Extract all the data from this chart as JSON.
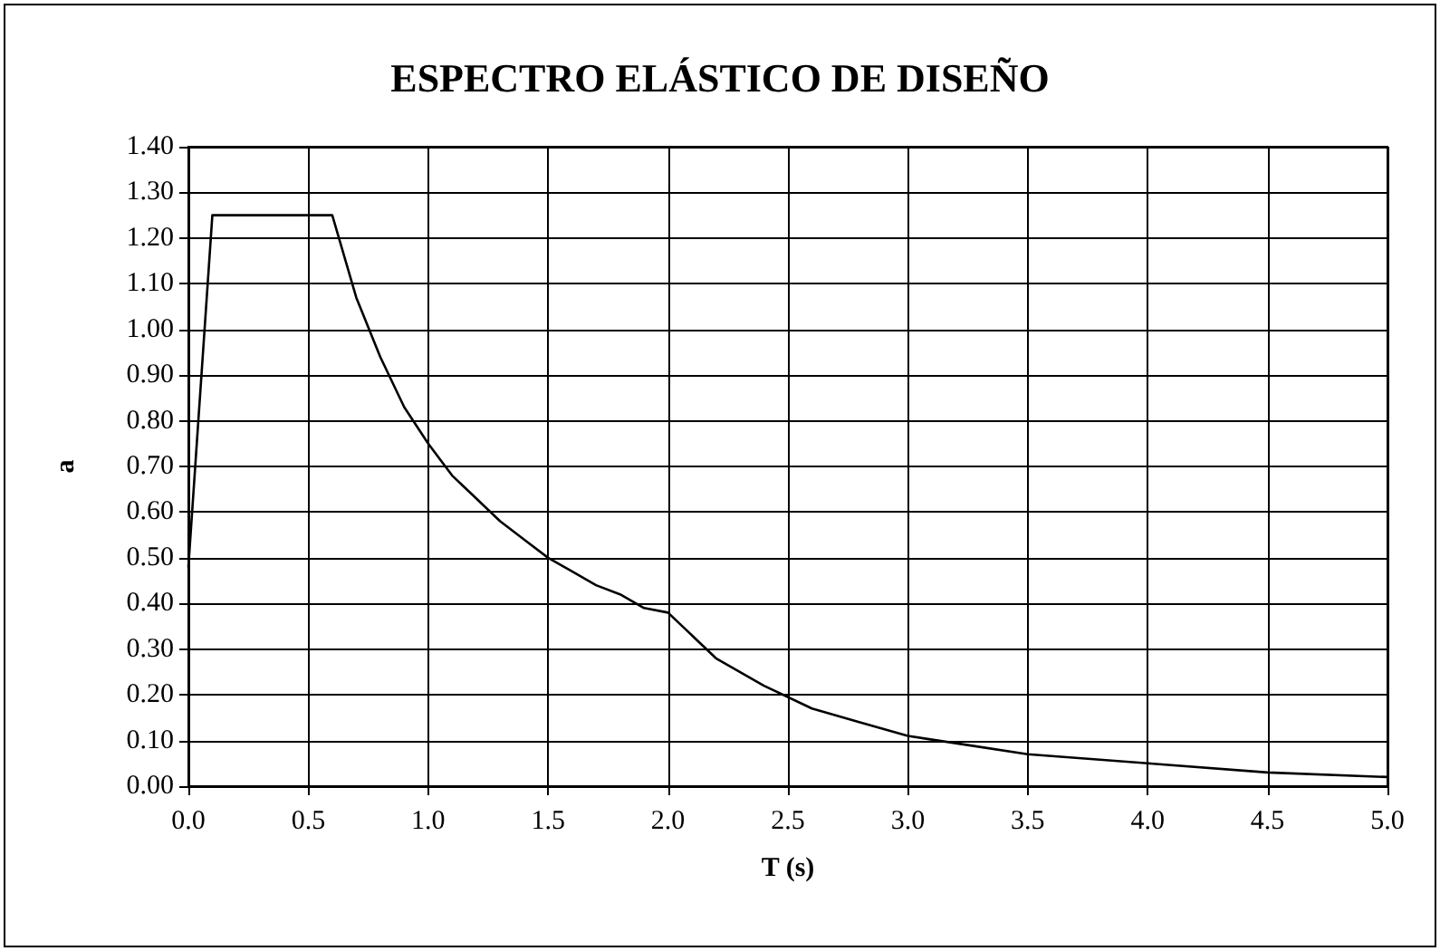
{
  "chart_data": {
    "type": "line",
    "title": "ESPECTRO ELÁSTICO DE DISEÑO",
    "xlabel": "T (s)",
    "ylabel": "a",
    "series": [
      {
        "color": "#000000",
        "x": [
          0,
          0.1,
          0.6,
          0.7,
          0.8,
          0.9,
          1.0,
          1.1,
          1.2,
          1.3,
          1.4,
          1.5,
          1.6,
          1.7,
          1.8,
          1.9,
          2.0,
          2.2,
          2.4,
          2.6,
          2.8,
          3.0,
          3.25,
          3.5,
          3.75,
          4.0,
          4.5,
          5.0
        ],
        "values": [
          0.48,
          1.25,
          1.25,
          1.07,
          0.94,
          0.83,
          0.75,
          0.68,
          0.63,
          0.58,
          0.54,
          0.5,
          0.47,
          0.44,
          0.42,
          0.39,
          0.38,
          0.28,
          0.22,
          0.17,
          0.14,
          0.11,
          0.09,
          0.07,
          0.06,
          0.05,
          0.03,
          0.02
        ]
      }
    ],
    "xlim": [
      0,
      5
    ],
    "xticks": [
      {
        "value": 0,
        "label": "0.0"
      },
      {
        "value": 0.5,
        "label": "0.5"
      },
      {
        "value": 1,
        "label": "1.0"
      },
      {
        "value": 1.5,
        "label": "1.5"
      },
      {
        "value": 2,
        "label": "2.0"
      },
      {
        "value": 2.5,
        "label": "2.5"
      },
      {
        "value": 3,
        "label": "3.0"
      },
      {
        "value": 3.5,
        "label": "3.5"
      },
      {
        "value": 4,
        "label": "4.0"
      },
      {
        "value": 4.5,
        "label": "4.5"
      },
      {
        "value": 5,
        "label": "5.0"
      }
    ],
    "ylim": [
      0,
      1.4
    ],
    "yticks": [
      {
        "value": 0,
        "label": "0.00"
      },
      {
        "value": 0.1,
        "label": "0.10"
      },
      {
        "value": 0.2,
        "label": "0.20"
      },
      {
        "value": 0.3,
        "label": "0.30"
      },
      {
        "value": 0.4,
        "label": "0.40"
      },
      {
        "value": 0.5,
        "label": "0.50"
      },
      {
        "value": 0.6,
        "label": "0.60"
      },
      {
        "value": 0.7,
        "label": "0.70"
      },
      {
        "value": 0.8,
        "label": "0.80"
      },
      {
        "value": 0.9,
        "label": "0.90"
      },
      {
        "value": 1.0,
        "label": "1.00"
      },
      {
        "value": 1.1,
        "label": "1.10"
      },
      {
        "value": 1.2,
        "label": "1.20"
      },
      {
        "value": 1.3,
        "label": "1.30"
      },
      {
        "value": 1.4,
        "label": "1.40"
      }
    ],
    "grid": true,
    "marker": "none",
    "line_style": "solid"
  }
}
